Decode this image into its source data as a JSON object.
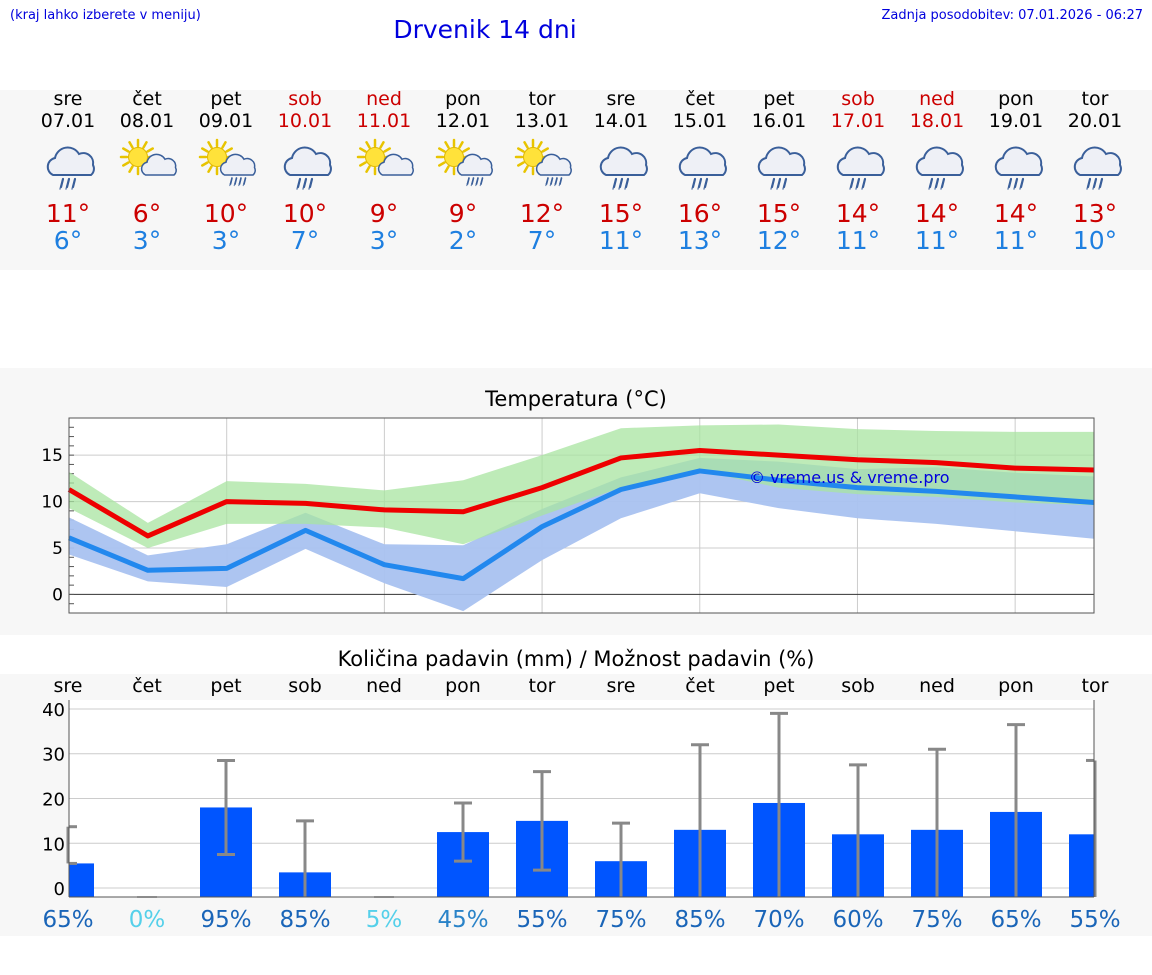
{
  "header": {
    "hint": "(kraj lahko izberete v meniju)",
    "title": "Drvenik 14 dni",
    "updated": "Zadnja posodobitev: 07.01.2026 - 06:27"
  },
  "days": [
    {
      "name": "sre",
      "date": "07.01",
      "weekend": false,
      "icon": "cloud-rain-icon",
      "tmax": "11°",
      "tmin": "6°"
    },
    {
      "name": "čet",
      "date": "08.01",
      "weekend": false,
      "icon": "sun-cloud-icon",
      "tmax": "6°",
      "tmin": "3°"
    },
    {
      "name": "pet",
      "date": "09.01",
      "weekend": false,
      "icon": "sun-cloud-rain-icon",
      "tmax": "10°",
      "tmin": "3°"
    },
    {
      "name": "sob",
      "date": "10.01",
      "weekend": true,
      "icon": "cloud-rain-icon",
      "tmax": "10°",
      "tmin": "7°"
    },
    {
      "name": "ned",
      "date": "11.01",
      "weekend": true,
      "icon": "sun-cloud-icon",
      "tmax": "9°",
      "tmin": "3°"
    },
    {
      "name": "pon",
      "date": "12.01",
      "weekend": false,
      "icon": "sun-cloud-rain-icon",
      "tmax": "9°",
      "tmin": "2°"
    },
    {
      "name": "tor",
      "date": "13.01",
      "weekend": false,
      "icon": "sun-cloud-rain-icon",
      "tmax": "12°",
      "tmin": "7°"
    },
    {
      "name": "sre",
      "date": "14.01",
      "weekend": false,
      "icon": "cloud-rain-icon",
      "tmax": "15°",
      "tmin": "11°"
    },
    {
      "name": "čet",
      "date": "15.01",
      "weekend": false,
      "icon": "cloud-rain-icon",
      "tmax": "16°",
      "tmin": "13°"
    },
    {
      "name": "pet",
      "date": "16.01",
      "weekend": false,
      "icon": "cloud-rain-icon",
      "tmax": "15°",
      "tmin": "12°"
    },
    {
      "name": "sob",
      "date": "17.01",
      "weekend": true,
      "icon": "cloud-rain-icon",
      "tmax": "14°",
      "tmin": "11°"
    },
    {
      "name": "ned",
      "date": "18.01",
      "weekend": true,
      "icon": "cloud-rain-icon",
      "tmax": "14°",
      "tmin": "11°"
    },
    {
      "name": "pon",
      "date": "19.01",
      "weekend": false,
      "icon": "cloud-rain-icon",
      "tmax": "14°",
      "tmin": "11°"
    },
    {
      "name": "tor",
      "date": "20.01",
      "weekend": false,
      "icon": "cloud-rain-icon",
      "tmax": "13°",
      "tmin": "10°"
    }
  ],
  "colors": {
    "max": "#ee0000",
    "min": "#2288ee",
    "max_band": "#a8e4a0",
    "min_band": "#a9c2f0",
    "overlap": "#7ec8a8",
    "bar": "#0055ff",
    "whisker": "#888888"
  },
  "chart_data": [
    {
      "type": "line",
      "title": "Temperatura (°C)",
      "watermark": "© vreme.us & vreme.pro",
      "x": [
        "07.01",
        "08.01",
        "09.01",
        "10.01",
        "11.01",
        "12.01",
        "13.01",
        "14.01",
        "15.01",
        "16.01",
        "17.01",
        "18.01",
        "19.01",
        "20.01"
      ],
      "ylim": [
        -2,
        19
      ],
      "yticks": [
        0,
        5,
        10,
        15
      ],
      "series": [
        {
          "name": "max",
          "values": [
            11.3,
            6.3,
            10,
            9.8,
            9.1,
            8.9,
            11.5,
            14.7,
            15.5,
            15,
            14.5,
            14.2,
            13.6,
            13.4
          ]
        },
        {
          "name": "min",
          "values": [
            6.1,
            2.6,
            2.8,
            6.9,
            3.2,
            1.7,
            7.3,
            11.3,
            13.3,
            12.3,
            11.5,
            11.1,
            10.5,
            9.9
          ]
        },
        {
          "name": "max_range",
          "low": [
            9.3,
            5.0,
            7.6,
            7.6,
            7.2,
            5.4,
            8.5,
            11.5,
            13.3,
            11.5,
            10.8,
            10.5,
            9.9,
            9.6
          ],
          "high": [
            13.2,
            7.7,
            12.2,
            11.9,
            11.2,
            12.3,
            15.0,
            17.9,
            18.2,
            18.3,
            17.8,
            17.6,
            17.5,
            17.5
          ]
        },
        {
          "name": "min_range",
          "low": [
            4.3,
            1.4,
            0.8,
            4.9,
            1.2,
            -1.8,
            3.7,
            8.2,
            10.9,
            9.3,
            8.2,
            7.6,
            6.8,
            6.0
          ],
          "high": [
            8.3,
            4.2,
            5.4,
            8.8,
            5.4,
            5.3,
            9.2,
            12.6,
            14.7,
            14.3,
            13.5,
            13.7,
            13.1,
            12.7
          ]
        }
      ]
    },
    {
      "type": "bar",
      "title": "Količina padavin (mm) / Možnost padavin (%)",
      "categories": [
        "sre",
        "čet",
        "pet",
        "sob",
        "ned",
        "pon",
        "tor",
        "sre",
        "čet",
        "pet",
        "sob",
        "ned",
        "pon",
        "tor"
      ],
      "ylim": [
        -2,
        42
      ],
      "yticks": [
        0,
        10,
        20,
        30,
        40
      ],
      "values": [
        5.5,
        0,
        18,
        3.5,
        0,
        12.5,
        15,
        6,
        13,
        19,
        12,
        13,
        17,
        12
      ],
      "error_high": [
        13.7,
        0,
        28.5,
        15,
        0,
        19,
        26,
        14.5,
        32,
        39,
        27.5,
        31,
        36.5,
        28.5
      ],
      "error_low": [
        5.5,
        0,
        7.5,
        0,
        0,
        6,
        4,
        0,
        0,
        0,
        0,
        0,
        0,
        0
      ],
      "probabilities": [
        "65%",
        "0%",
        "95%",
        "85%",
        "5%",
        "45%",
        "55%",
        "75%",
        "85%",
        "70%",
        "60%",
        "75%",
        "65%",
        "55%"
      ],
      "probability_colors": [
        "#1a65b8",
        "#55d0ea",
        "#1a65b8",
        "#1a65b8",
        "#55d0ea",
        "#2a83c8",
        "#1a65b8",
        "#1a65b8",
        "#1a65b8",
        "#1a65b8",
        "#1a65b8",
        "#1a65b8",
        "#1a65b8",
        "#1a65b8"
      ]
    }
  ]
}
